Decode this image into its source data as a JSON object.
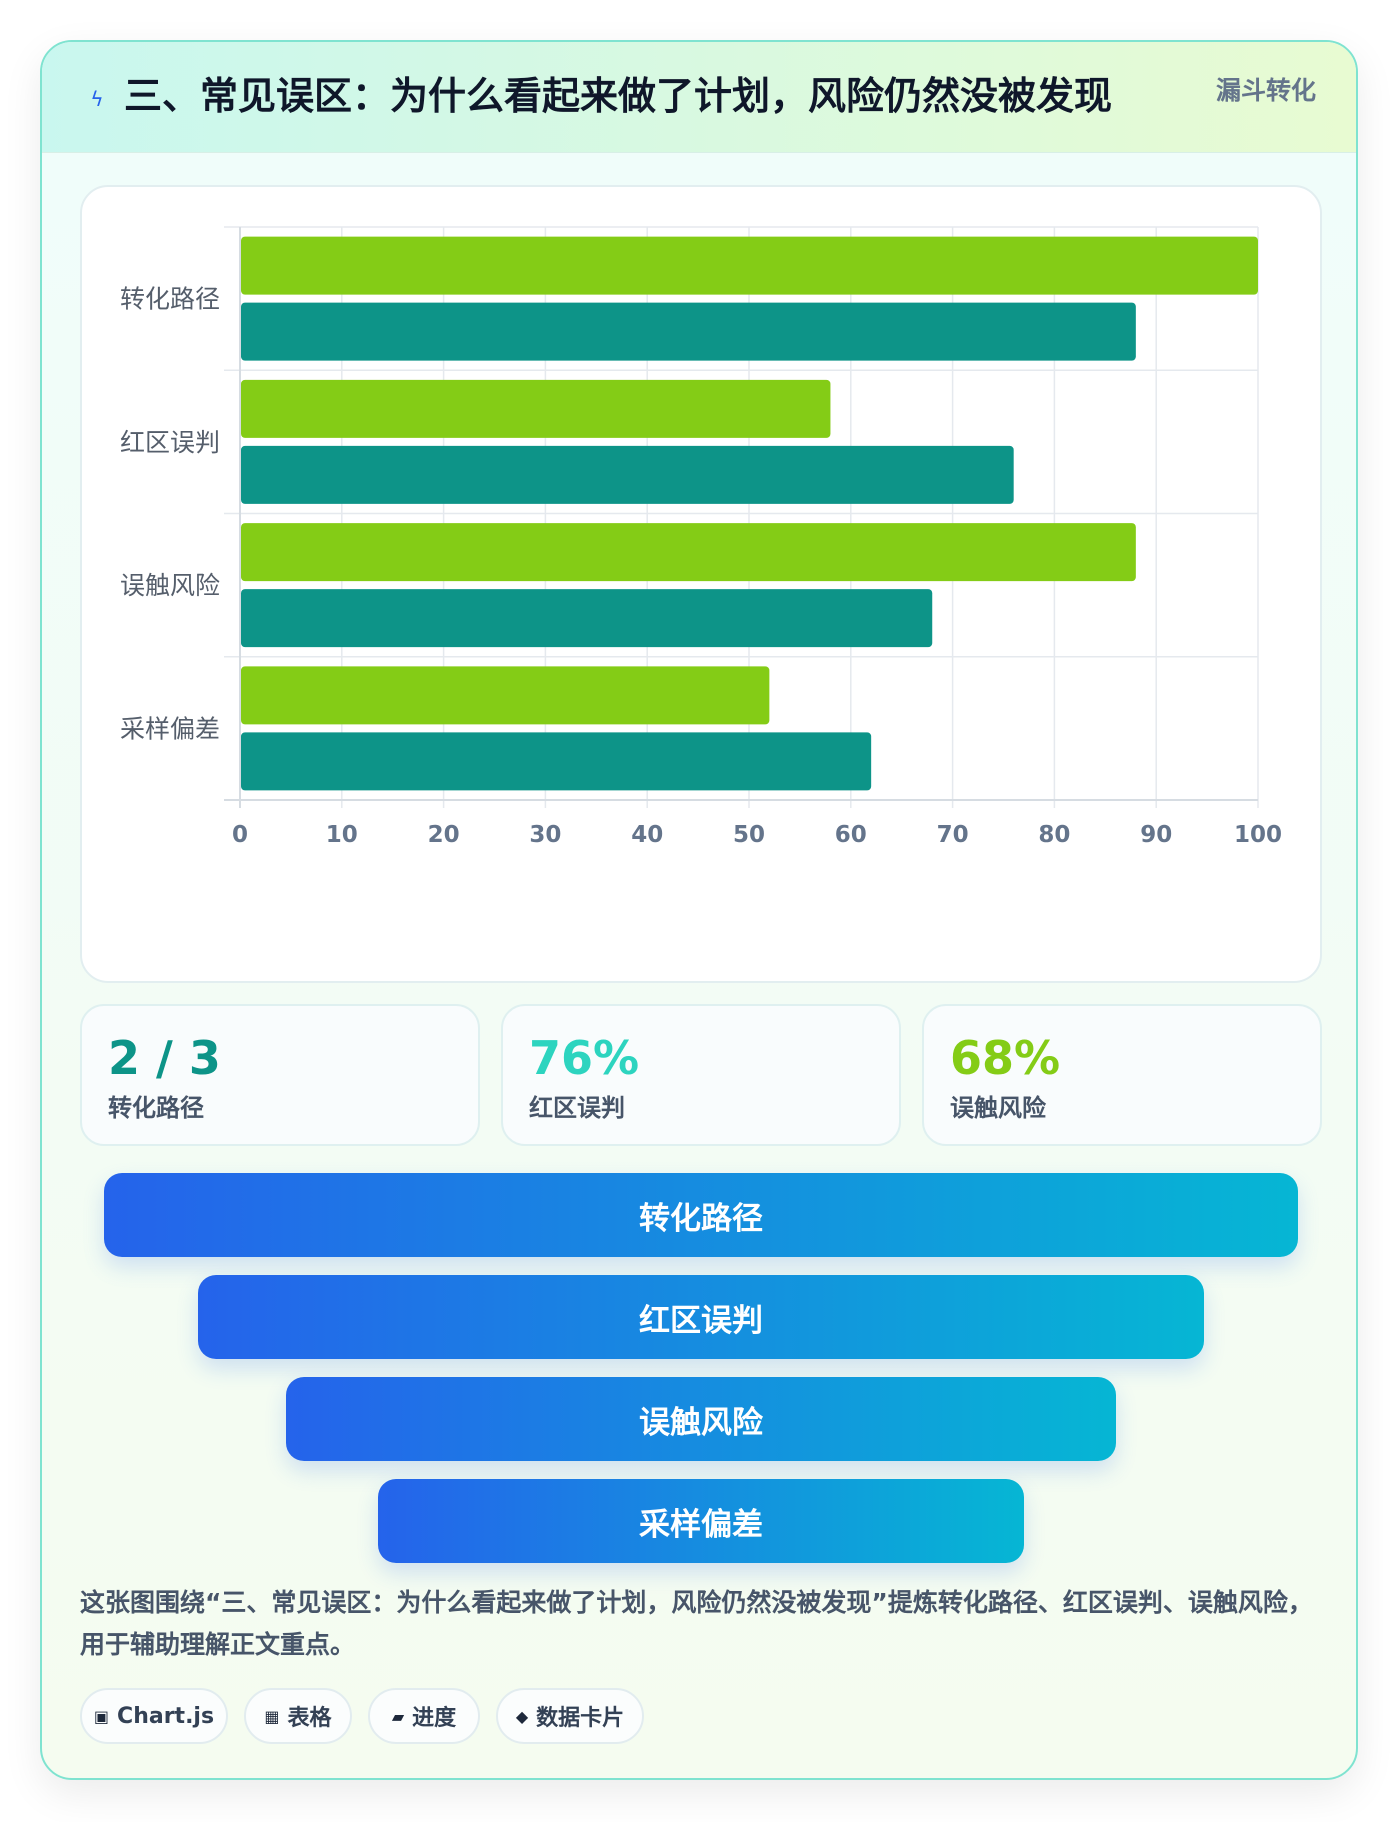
{
  "header": {
    "icon": "lightning-icon",
    "title": "三、常见误区：为什么看起来做了计划，风险仍然没被发现",
    "tag": "漏斗转化"
  },
  "chart_data": {
    "type": "bar",
    "orientation": "horizontal",
    "categories": [
      "转化路径",
      "红区误判",
      "误触风险",
      "采样偏差"
    ],
    "series": [
      {
        "values": [
          100,
          58,
          88,
          52
        ],
        "color": "#84cc16"
      },
      {
        "values": [
          88,
          76,
          68,
          62
        ],
        "color": "#0d9488"
      }
    ],
    "xlim": [
      0,
      100
    ],
    "xticks": [
      0,
      10,
      20,
      30,
      40,
      50,
      60,
      70,
      80,
      90,
      100
    ],
    "grid": true,
    "legend": "none"
  },
  "stats": [
    {
      "value": "2 / 3",
      "label": "转化路径",
      "color": "#0d9488"
    },
    {
      "value": "76%",
      "label": "红区误判",
      "color": "#2dd4bf"
    },
    {
      "value": "68%",
      "label": "误触风险",
      "color": "#84cc16"
    }
  ],
  "funnel": [
    "转化路径",
    "红区误判",
    "误触风险",
    "采样偏差"
  ],
  "caption": "这张图围绕“三、常见误区：为什么看起来做了计划，风险仍然没被发现”提炼转化路径、红区误判、误触风险，用于辅助理解正文重点。",
  "tags": [
    {
      "icon": "▣",
      "label": "Chart.js"
    },
    {
      "icon": "▦",
      "label": "表格"
    },
    {
      "icon": "▰",
      "label": "进度"
    },
    {
      "icon": "◆",
      "label": "数据卡片"
    }
  ]
}
